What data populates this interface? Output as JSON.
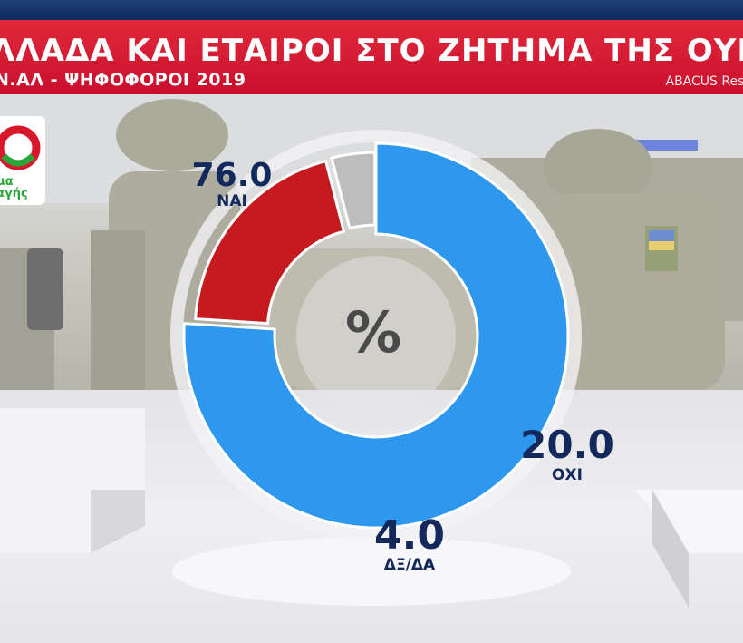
{
  "header": {
    "title": "ΛΛΑΔΑ ΚΑΙ ΕΤΑΙΡΟΙ ΣΤΟ ΖΗΤΗΜΑ ΤΗΣ ΟΥΚΡΑΝΙΑΣ",
    "subtitle": "Ν.ΑΛ - ΨΗΦΟΦΟΡΟΙ 2019",
    "source": "ABACUS Rese"
  },
  "logo": {
    "line1": "μα",
    "line2": "αγής",
    "colors": {
      "red": "#d7182a",
      "green": "#2aa53a"
    }
  },
  "colors": {
    "header_red": "#d21d33",
    "top_blue": "#1a3a74",
    "label_navy": "#13295b"
  },
  "chart_data": {
    "type": "pie",
    "donut": true,
    "center_label": "%",
    "slices": [
      {
        "label": "ΝΑΙ",
        "value": 76.0,
        "value_label": "76.0",
        "color": "#2d98ee"
      },
      {
        "label": "ΟΧΙ",
        "value": 20.0,
        "value_label": "20.0",
        "color": "#c51b1f"
      },
      {
        "label": "ΔΞ/ΔΑ",
        "value": 4.0,
        "value_label": "4.0",
        "color": "#bdbdbd"
      }
    ]
  }
}
